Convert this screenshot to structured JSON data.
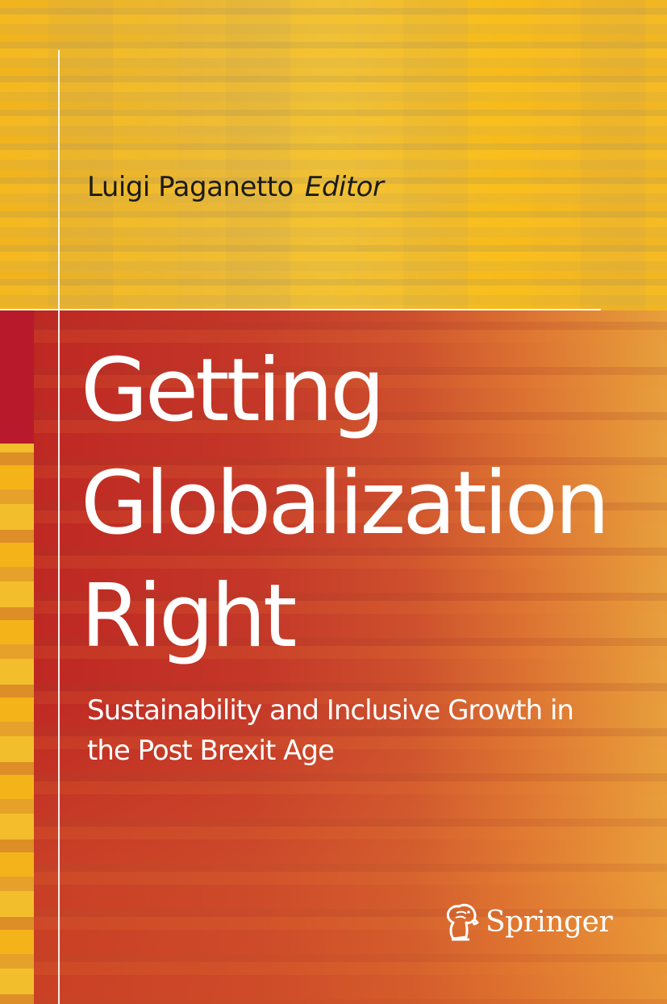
{
  "cover": {
    "editor_name": "Luigi Paganetto",
    "editor_role": "Editor",
    "title_lines": [
      "Getting",
      "Globalization",
      "Right"
    ],
    "subtitle_lines": [
      "Sustainability and Inclusive Growth in",
      "the Post Brexit Age"
    ],
    "publisher": "Springer",
    "publisher_logo_icon": "springer-horse-icon",
    "colors": {
      "top_band": "#f0b428",
      "main_band": "#c4372a",
      "accent_red": "#b8192b",
      "title_text": "#ffffff",
      "editor_text": "#1b1b1b"
    }
  }
}
